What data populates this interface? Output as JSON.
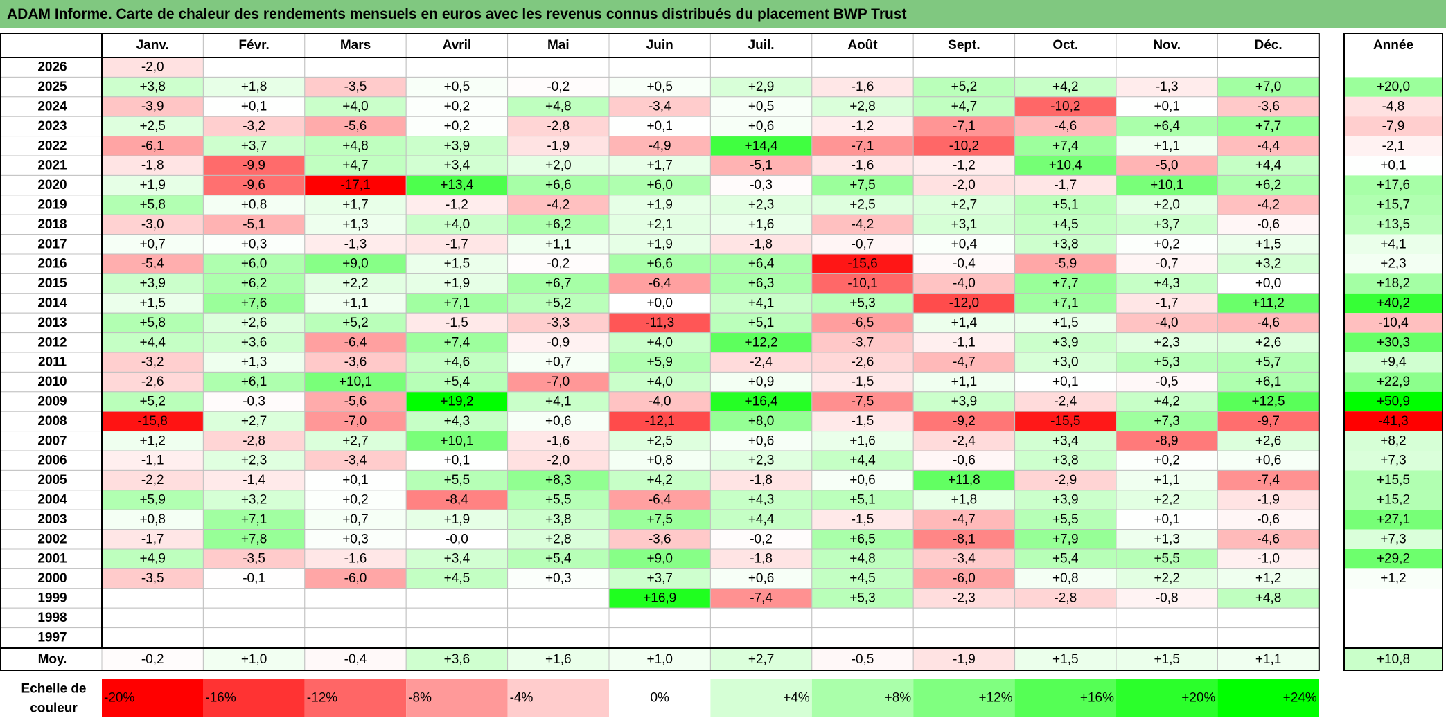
{
  "title": "ADAM Informe. Carte de chaleur des rendements mensuels en euros avec les revenus connus distribués du placement BWP Trust",
  "colors": {
    "title_bg": "#80c880",
    "max_negative": "#ff0000",
    "neutral": "#ffffff",
    "max_positive": "#00ff00",
    "grid": "#c0c0c0",
    "border": "#000000"
  },
  "chart_data": {
    "type": "heatmap",
    "title": "ADAM Informe. Carte de chaleur des rendements mensuels en euros avec les revenus connus distribués du placement BWP Trust",
    "unit": "%",
    "months": [
      "Janv.",
      "Févr.",
      "Mars",
      "Avril",
      "Mai",
      "Juin",
      "Juil.",
      "Août",
      "Sept.",
      "Oct.",
      "Nov.",
      "Déc."
    ],
    "annual_header": "Année",
    "rows": [
      {
        "year": "2026",
        "values": [
          "-2,0",
          "",
          "",
          "",
          "",
          "",
          "",
          "",
          "",
          "",
          "",
          ""
        ],
        "annual": ""
      },
      {
        "year": "2025",
        "values": [
          "+3,8",
          "+1,8",
          "-3,5",
          "+0,5",
          "-0,2",
          "+0,5",
          "+2,9",
          "-1,6",
          "+5,2",
          "+4,2",
          "-1,3",
          "+7,0"
        ],
        "annual": "+20,0"
      },
      {
        "year": "2024",
        "values": [
          "-3,9",
          "+0,1",
          "+4,0",
          "+0,2",
          "+4,8",
          "-3,4",
          "+0,5",
          "+2,8",
          "+4,7",
          "-10,2",
          "+0,1",
          "-3,6"
        ],
        "annual": "-4,8"
      },
      {
        "year": "2023",
        "values": [
          "+2,5",
          "-3,2",
          "-5,6",
          "+0,2",
          "-2,8",
          "+0,1",
          "+0,6",
          "-1,2",
          "-7,1",
          "-4,6",
          "+6,4",
          "+7,7"
        ],
        "annual": "-7,9"
      },
      {
        "year": "2022",
        "values": [
          "-6,1",
          "+3,7",
          "+4,8",
          "+3,9",
          "-1,9",
          "-4,9",
          "+14,4",
          "-7,1",
          "-10,2",
          "+7,4",
          "+1,1",
          "-4,4"
        ],
        "annual": "-2,1"
      },
      {
        "year": "2021",
        "values": [
          "-1,8",
          "-9,9",
          "+4,7",
          "+3,4",
          "+2,0",
          "+1,7",
          "-5,1",
          "-1,6",
          "-1,2",
          "+10,4",
          "-5,0",
          "+4,4"
        ],
        "annual": "+0,1"
      },
      {
        "year": "2020",
        "values": [
          "+1,9",
          "-9,6",
          "-17,1",
          "+13,4",
          "+6,6",
          "+6,0",
          "-0,3",
          "+7,5",
          "-2,0",
          "-1,7",
          "+10,1",
          "+6,2"
        ],
        "annual": "+17,6"
      },
      {
        "year": "2019",
        "values": [
          "+5,8",
          "+0,8",
          "+1,7",
          "-1,2",
          "-4,2",
          "+1,9",
          "+2,3",
          "+2,5",
          "+2,7",
          "+5,1",
          "+2,0",
          "-4,2"
        ],
        "annual": "+15,7"
      },
      {
        "year": "2018",
        "values": [
          "-3,0",
          "-5,1",
          "+1,3",
          "+4,0",
          "+6,2",
          "+2,1",
          "+1,6",
          "-4,2",
          "+3,1",
          "+4,5",
          "+3,7",
          "-0,6"
        ],
        "annual": "+13,5"
      },
      {
        "year": "2017",
        "values": [
          "+0,7",
          "+0,3",
          "-1,3",
          "-1,7",
          "+1,1",
          "+1,9",
          "-1,8",
          "-0,7",
          "+0,4",
          "+3,8",
          "+0,2",
          "+1,5"
        ],
        "annual": "+4,1"
      },
      {
        "year": "2016",
        "values": [
          "-5,4",
          "+6,0",
          "+9,0",
          "+1,5",
          "-0,2",
          "+6,6",
          "+6,4",
          "-15,6",
          "-0,4",
          "-5,9",
          "-0,7",
          "+3,2"
        ],
        "annual": "+2,3"
      },
      {
        "year": "2015",
        "values": [
          "+3,9",
          "+6,2",
          "+2,2",
          "+1,9",
          "+6,7",
          "-6,4",
          "+6,3",
          "-10,1",
          "-4,0",
          "+7,7",
          "+4,3",
          "+0,0"
        ],
        "annual": "+18,2"
      },
      {
        "year": "2014",
        "values": [
          "+1,5",
          "+7,6",
          "+1,1",
          "+7,1",
          "+5,2",
          "+0,0",
          "+4,1",
          "+5,3",
          "-12,0",
          "+7,1",
          "-1,7",
          "+11,2"
        ],
        "annual": "+40,2"
      },
      {
        "year": "2013",
        "values": [
          "+5,8",
          "+2,6",
          "+5,2",
          "-1,5",
          "-3,3",
          "-11,3",
          "+5,1",
          "-6,5",
          "+1,4",
          "+1,5",
          "-4,0",
          "-4,6"
        ],
        "annual": "-10,4"
      },
      {
        "year": "2012",
        "values": [
          "+4,4",
          "+3,6",
          "-6,4",
          "+7,4",
          "-0,9",
          "+4,0",
          "+12,2",
          "-3,7",
          "-1,1",
          "+3,9",
          "+2,3",
          "+2,6"
        ],
        "annual": "+30,3"
      },
      {
        "year": "2011",
        "values": [
          "-3,2",
          "+1,3",
          "-3,6",
          "+4,6",
          "+0,7",
          "+5,9",
          "-2,4",
          "-2,6",
          "-4,7",
          "+3,0",
          "+5,3",
          "+5,7"
        ],
        "annual": "+9,4"
      },
      {
        "year": "2010",
        "values": [
          "-2,6",
          "+6,1",
          "+10,1",
          "+5,4",
          "-7,0",
          "+4,0",
          "+0,9",
          "-1,5",
          "+1,1",
          "+0,1",
          "-0,5",
          "+6,1"
        ],
        "annual": "+22,9"
      },
      {
        "year": "2009",
        "values": [
          "+5,2",
          "-0,3",
          "-5,6",
          "+19,2",
          "+4,1",
          "-4,0",
          "+16,4",
          "-7,5",
          "+3,9",
          "-2,4",
          "+4,2",
          "+12,5"
        ],
        "annual": "+50,9"
      },
      {
        "year": "2008",
        "values": [
          "-15,8",
          "+2,7",
          "-7,0",
          "+4,3",
          "+0,6",
          "-12,1",
          "+8,0",
          "-1,5",
          "-9,2",
          "-15,5",
          "+7,3",
          "-9,7"
        ],
        "annual": "-41,3"
      },
      {
        "year": "2007",
        "values": [
          "+1,2",
          "-2,8",
          "+2,7",
          "+10,1",
          "-1,6",
          "+2,5",
          "+0,6",
          "+1,6",
          "-2,4",
          "+3,4",
          "-8,9",
          "+2,6"
        ],
        "annual": "+8,2"
      },
      {
        "year": "2006",
        "values": [
          "-1,1",
          "+2,3",
          "-3,4",
          "+0,1",
          "-2,0",
          "+0,8",
          "+2,3",
          "+4,4",
          "-0,6",
          "+3,8",
          "+0,2",
          "+0,6"
        ],
        "annual": "+7,3"
      },
      {
        "year": "2005",
        "values": [
          "-2,2",
          "-1,4",
          "+0,1",
          "+5,5",
          "+8,3",
          "+4,2",
          "-1,8",
          "+0,6",
          "+11,8",
          "-2,9",
          "+1,1",
          "-7,4"
        ],
        "annual": "+15,5"
      },
      {
        "year": "2004",
        "values": [
          "+5,9",
          "+3,2",
          "+0,2",
          "-8,4",
          "+5,5",
          "-6,4",
          "+4,3",
          "+5,1",
          "+1,8",
          "+3,9",
          "+2,2",
          "-1,9"
        ],
        "annual": "+15,2"
      },
      {
        "year": "2003",
        "values": [
          "+0,8",
          "+7,1",
          "+0,7",
          "+1,9",
          "+3,8",
          "+7,5",
          "+4,4",
          "-1,5",
          "-4,7",
          "+5,5",
          "+0,1",
          "-0,6"
        ],
        "annual": "+27,1"
      },
      {
        "year": "2002",
        "values": [
          "-1,7",
          "+7,8",
          "+0,3",
          "-0,0",
          "+2,8",
          "-3,6",
          "-0,2",
          "+6,5",
          "-8,1",
          "+7,9",
          "+1,3",
          "-4,6"
        ],
        "annual": "+7,3"
      },
      {
        "year": "2001",
        "values": [
          "+4,9",
          "-3,5",
          "-1,6",
          "+3,4",
          "+5,4",
          "+9,0",
          "-1,8",
          "+4,8",
          "-3,4",
          "+5,4",
          "+5,5",
          "-1,0"
        ],
        "annual": "+29,2"
      },
      {
        "year": "2000",
        "values": [
          "-3,5",
          "-0,1",
          "-6,0",
          "+4,5",
          "+0,3",
          "+3,7",
          "+0,6",
          "+4,5",
          "-6,0",
          "+0,8",
          "+2,2",
          "+1,2"
        ],
        "annual": "+1,2"
      },
      {
        "year": "1999",
        "values": [
          "",
          "",
          "",
          "",
          "",
          "+16,9",
          "-7,4",
          "+5,3",
          "-2,3",
          "-2,8",
          "-0,8",
          "+4,8"
        ],
        "annual": ""
      },
      {
        "year": "1998",
        "values": [
          "",
          "",
          "",
          "",
          "",
          "",
          "",
          "",
          "",
          "",
          "",
          ""
        ],
        "annual": ""
      },
      {
        "year": "1997",
        "values": [
          "",
          "",
          "",
          "",
          "",
          "",
          "",
          "",
          "",
          "",
          "",
          ""
        ],
        "annual": ""
      }
    ],
    "average": {
      "label": "Moy.",
      "values": [
        "-0,2",
        "+1,0",
        "-0,4",
        "+3,6",
        "+1,6",
        "+1,0",
        "+2,7",
        "-0,5",
        "-1,9",
        "+1,5",
        "+1,5",
        "+1,1"
      ],
      "annual": "+10,8"
    },
    "scale": {
      "label_line1": "Echelle de",
      "label_line2": "couleur",
      "stops": [
        {
          "value": -20,
          "label": "-20%"
        },
        {
          "value": -16,
          "label": "-16%"
        },
        {
          "value": -12,
          "label": "-12%"
        },
        {
          "value": -8,
          "label": "-8%"
        },
        {
          "value": -4,
          "label": "-4%"
        },
        {
          "value": 0,
          "label": "0%"
        },
        {
          "value": 4,
          "label": "+4%"
        },
        {
          "value": 8,
          "label": "+8%"
        },
        {
          "value": 12,
          "label": "+12%"
        },
        {
          "value": 16,
          "label": "+16%"
        },
        {
          "value": 20,
          "label": "+20%"
        },
        {
          "value": 24,
          "label": "+24%"
        }
      ]
    },
    "color_domain": {
      "monthly_negative_max": -17.1,
      "monthly_positive_max": 19.2,
      "annual_negative_max": -41.3,
      "annual_positive_max": 50.9
    }
  }
}
